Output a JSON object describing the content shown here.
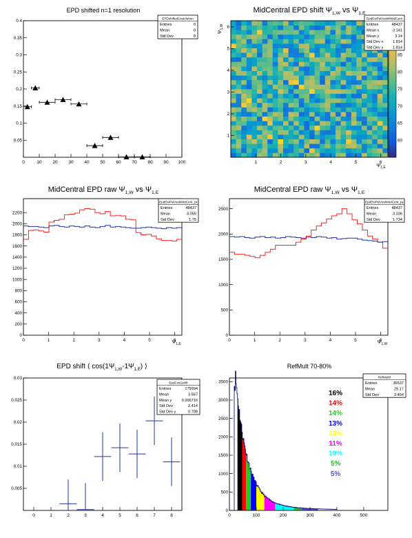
{
  "charts": [
    {
      "key": "res",
      "type": "scatter",
      "title": "EPD shifted n=1 resolution",
      "stats": {
        "name": "EPDshifted1resolution",
        "rows": [
          [
            "Entries",
            "0"
          ],
          [
            "Mean",
            "0"
          ],
          [
            "Std Dev",
            "0"
          ]
        ]
      },
      "xlim": [
        0,
        100
      ],
      "ylim": [
        0,
        0.4
      ],
      "xticks": [
        "0",
        "10",
        "20",
        "30",
        "40",
        "50",
        "60",
        "70",
        "80",
        "90",
        "100"
      ],
      "yticks": [
        "0.05",
        "0.1",
        "0.15",
        "0.2",
        "0.25",
        "0.3",
        "0.35",
        "0.4"
      ],
      "points": [
        {
          "x": 2.5,
          "y": 0.148,
          "xerr": 2.5
        },
        {
          "x": 7.5,
          "y": 0.203,
          "xerr": 2.5
        },
        {
          "x": 15,
          "y": 0.161,
          "xerr": 5
        },
        {
          "x": 25,
          "y": 0.169,
          "xerr": 5
        },
        {
          "x": 35,
          "y": 0.156,
          "xerr": 5
        },
        {
          "x": 45,
          "y": 0.034,
          "xerr": 5
        },
        {
          "x": 55,
          "y": 0.058,
          "xerr": 5
        },
        {
          "x": 65,
          "y": 0.001,
          "xerr": 5
        },
        {
          "x": 75,
          "y": 0.001,
          "xerr": 5
        }
      ]
    },
    {
      "key": "heat",
      "type": "heatmap",
      "title_main": "MidCentral EPD shift Ψ",
      "title_sub1": "1,W",
      "title_mid": " vs Ψ",
      "title_sub2": "1,E",
      "xlabel_main": "Ψ",
      "xlabel_sub": "1,E",
      "ylabel_main": "Ψ",
      "ylabel_sub": "1,W",
      "stats": {
        "name": "EpdEwPsiVsshiftMidCent",
        "rows": [
          [
            "Entries",
            "48437"
          ],
          [
            "Mean x",
            "3.141"
          ],
          [
            "Mean y",
            "3.14"
          ],
          [
            "Std Dev x",
            "1.814"
          ],
          [
            "Std Dev y",
            "1.814"
          ]
        ]
      },
      "xlim": [
        0,
        6.2832
      ],
      "ylim": [
        0,
        6.2832
      ],
      "xticks": [
        "1",
        "2",
        "3",
        "4",
        "5",
        "6"
      ],
      "yticks": [
        "1",
        "2",
        "3",
        "4",
        "5",
        "6"
      ],
      "zlim": [
        55,
        95
      ],
      "zticks": [
        "60",
        "65",
        "70",
        "75",
        "80",
        "85",
        "90"
      ],
      "bins": 30
    },
    {
      "key": "rawE",
      "type": "line",
      "title_main": "MidCentral EPD raw Ψ",
      "title_sub1": "1,W",
      "title_mid": " vs Ψ",
      "title_sub2": "1,E",
      "xlabel_main": "Ψ",
      "xlabel_sub": "1,E",
      "stats": {
        "name": "EpdEwPsiVsshMidCent_px",
        "rows": [
          [
            "Entries",
            "48437"
          ],
          [
            "Mean",
            "3.055"
          ],
          [
            "Std Dev",
            "1.75"
          ]
        ]
      },
      "xlim": [
        0,
        6.2832
      ],
      "ylim": [
        0,
        2450
      ],
      "xticks": [
        "0",
        "1",
        "2",
        "3",
        "4",
        "5",
        "6"
      ],
      "yticks": [
        "0",
        "200",
        "400",
        "600",
        "800",
        "1000",
        "1200",
        "1400",
        "1600",
        "1800",
        "2000",
        "2200"
      ],
      "series": [
        {
          "color": "#ff2020",
          "values": [
            1720,
            1880,
            1890,
            1870,
            1850,
            2030,
            2060,
            2080,
            2160,
            2170,
            2190,
            2250,
            2270,
            2260,
            2200,
            2180,
            2220,
            2140,
            2150,
            2140,
            2080,
            2070,
            1840,
            1800,
            1810,
            1780,
            1730,
            1700,
            1700,
            1690,
            1720
          ]
        },
        {
          "color": "#2030a0",
          "values": [
            1960,
            1950,
            1950,
            1940,
            1930,
            1960,
            1970,
            1950,
            1940,
            1960,
            1950,
            1940,
            1960,
            1940,
            1930,
            1950,
            1970,
            1940,
            1950,
            1940,
            1930,
            1920,
            1920,
            1930,
            1940,
            1930,
            1920,
            1910,
            1930,
            1920,
            1930
          ]
        }
      ]
    },
    {
      "key": "rawW",
      "type": "line",
      "title_main": "MidCentral EPD raw Ψ",
      "title_sub1": "1,W",
      "title_mid": " vs Ψ",
      "title_sub2": "1,E",
      "xlabel_main": "Ψ",
      "xlabel_sub": "1,W",
      "stats": {
        "name": "EpdEwPsiVsshMidCent_py",
        "rows": [
          [
            "Entries",
            "48437"
          ],
          [
            "Mean",
            "3.336"
          ],
          [
            "Std Dev",
            "1.734"
          ]
        ]
      },
      "xlim": [
        0,
        6.2832
      ],
      "ylim": [
        0,
        2700
      ],
      "xticks": [
        "0",
        "1",
        "2",
        "3",
        "4",
        "5",
        "6"
      ],
      "yticks": [
        "0",
        "500",
        "1000",
        "1500",
        "2000",
        "2500"
      ],
      "series": [
        {
          "color": "#ff2020",
          "values": [
            1640,
            1600,
            1600,
            1580,
            1560,
            1530,
            1580,
            1640,
            1700,
            1780,
            1780,
            1780,
            1780,
            1840,
            1900,
            1960,
            2080,
            2160,
            2220,
            2300,
            2360,
            2400,
            2500,
            2400,
            2280,
            2200,
            2080,
            1960,
            1900,
            1840,
            1720
          ]
        },
        {
          "color": "#2030a0",
          "values": [
            1950,
            1940,
            1950,
            1930,
            1920,
            1940,
            1950,
            1930,
            1940,
            1920,
            1930,
            1950,
            1940,
            1930,
            1920,
            1940,
            1930,
            1950,
            1940,
            1920,
            1930,
            1900,
            1910,
            1920,
            1920,
            1900,
            1880,
            1870,
            1860,
            1840,
            1850
          ]
        }
      ]
    },
    {
      "key": "cos",
      "type": "scatter",
      "title_main": "EPD shift ⟨ cos(1Ψ",
      "title_sub1": "1,W",
      "title_mid": "-1Ψ",
      "title_sub2": "1,E",
      "title_end": ") ⟩",
      "stats": {
        "name": "EpdCos1shift",
        "rows": [
          [
            "Entries",
            "179994"
          ],
          [
            "Mean",
            "3.567"
          ],
          [
            "Mean y",
            "0.006716"
          ],
          [
            "Std Dev",
            "2.414"
          ],
          [
            "Std Dev y",
            "0.708"
          ]
        ]
      },
      "xlim": [
        -0.6,
        8.6
      ],
      "ylim": [
        0,
        0.03
      ],
      "xticks": [
        "0",
        "1",
        "2",
        "3",
        "4",
        "5",
        "6",
        "7",
        "8"
      ],
      "yticks": [
        "0.005",
        "0.01",
        "0.015",
        "0.02",
        "0.025",
        "0.03"
      ],
      "points": [
        {
          "x": 2,
          "y": 0.0015,
          "yerr": 0.0055
        },
        {
          "x": 3,
          "y": 0.0002,
          "yerr": 0.006
        },
        {
          "x": 4,
          "y": 0.0122,
          "yerr": 0.0055
        },
        {
          "x": 5,
          "y": 0.0142,
          "yerr": 0.0055
        },
        {
          "x": 6,
          "y": 0.0128,
          "yerr": 0.0055
        },
        {
          "x": 7,
          "y": 0.0203,
          "yerr": 0.0055
        },
        {
          "x": 8,
          "y": 0.011,
          "yerr": 0.0055
        }
      ]
    },
    {
      "key": "ref",
      "type": "bar",
      "title": "RefMult 70-80%",
      "stats": {
        "name": "RefMult0",
        "rows": [
          [
            "Entries",
            "36537"
          ],
          [
            "Mean",
            "25.17"
          ],
          [
            "Std Dev",
            "3.454"
          ]
        ]
      },
      "xlim": [
        0,
        590
      ],
      "ylim": [
        0,
        3600
      ],
      "xticks": [
        "0",
        "100",
        "200",
        "300",
        "400",
        "500"
      ],
      "yticks": [
        "0",
        "500",
        "1000",
        "1500",
        "2000",
        "2500",
        "3000",
        "3500"
      ],
      "legend": [
        {
          "label": "16%",
          "color": "#000000"
        },
        {
          "label": "14%",
          "color": "#ff0000"
        },
        {
          "label": "14%",
          "color": "#22cc22"
        },
        {
          "label": "13%",
          "color": "#0000ff"
        },
        {
          "label": "13%",
          "color": "#ffff00"
        },
        {
          "label": "11%",
          "color": "#ff00ff"
        },
        {
          "label": "10%",
          "color": "#00ffff"
        },
        {
          "label": "5%",
          "color": "#33bb33"
        },
        {
          "label": "5%",
          "color": "#5555cc"
        }
      ],
      "fills": [
        {
          "from": 0,
          "to": 30,
          "color": "#ffffff"
        },
        {
          "from": 30,
          "to": 48,
          "color": "#000000"
        },
        {
          "from": 48,
          "to": 62,
          "color": "#ff0000"
        },
        {
          "from": 62,
          "to": 80,
          "color": "#22cc22"
        },
        {
          "from": 80,
          "to": 100,
          "color": "#0000ff"
        },
        {
          "from": 100,
          "to": 130,
          "color": "#ffff00"
        },
        {
          "from": 130,
          "to": 170,
          "color": "#ff00ff"
        },
        {
          "from": 170,
          "to": 240,
          "color": "#00ffff"
        },
        {
          "from": 240,
          "to": 270,
          "color": "#33bb33"
        },
        {
          "from": 270,
          "to": 330,
          "color": "#5555cc"
        }
      ]
    }
  ]
}
